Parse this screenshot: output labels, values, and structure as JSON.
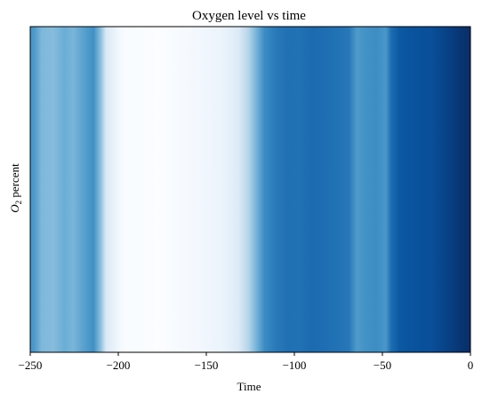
{
  "chart_data": {
    "type": "heatmap",
    "title": "Oxygen level vs time",
    "xlabel": "Time",
    "ylabel": "O₂ percent",
    "xlim": [
      -250,
      0
    ],
    "xticks": [
      -250,
      -200,
      -150,
      -100,
      -50,
      0
    ],
    "xtick_labels": [
      "−250",
      "−200",
      "−150",
      "−100",
      "−50",
      "0"
    ],
    "yticks": [],
    "colormap": "Blues",
    "grid": false,
    "legend": "none",
    "bands": [
      {
        "x0": -250,
        "x1": -246,
        "color": "#4a98c9"
      },
      {
        "x0": -246,
        "x1": -241,
        "color": "#7fb8da"
      },
      {
        "x0": -241,
        "x1": -233,
        "color": "#86bcdc"
      },
      {
        "x0": -233,
        "x1": -228,
        "color": "#6aaed6"
      },
      {
        "x0": -228,
        "x1": -223,
        "color": "#7ab5d9"
      },
      {
        "x0": -223,
        "x1": -217,
        "color": "#5aa2cf"
      },
      {
        "x0": -217,
        "x1": -211,
        "color": "#4090c5"
      },
      {
        "x0": -211,
        "x1": -209,
        "color": "#8cc0dd"
      },
      {
        "x0": -209,
        "x1": -205,
        "color": "#dbe9f6"
      },
      {
        "x0": -205,
        "x1": -190,
        "color": "#f7fbff"
      },
      {
        "x0": -190,
        "x1": -165,
        "color": "#fbfdff"
      },
      {
        "x0": -165,
        "x1": -145,
        "color": "#f3f8fe"
      },
      {
        "x0": -145,
        "x1": -135,
        "color": "#eaf3fb"
      },
      {
        "x0": -135,
        "x1": -128,
        "color": "#dceaf6"
      },
      {
        "x0": -128,
        "x1": -124,
        "color": "#b5d4e9"
      },
      {
        "x0": -124,
        "x1": -120,
        "color": "#7cb7da"
      },
      {
        "x0": -120,
        "x1": -114,
        "color": "#3c8cc3"
      },
      {
        "x0": -114,
        "x1": -108,
        "color": "#2a7aba"
      },
      {
        "x0": -108,
        "x1": -100,
        "color": "#2070b4"
      },
      {
        "x0": -100,
        "x1": -94,
        "color": "#2171b5"
      },
      {
        "x0": -94,
        "x1": -86,
        "color": "#1c6ab0"
      },
      {
        "x0": -86,
        "x1": -78,
        "color": "#1f6eb3"
      },
      {
        "x0": -78,
        "x1": -72,
        "color": "#2272b6"
      },
      {
        "x0": -72,
        "x1": -66,
        "color": "#2777b8"
      },
      {
        "x0": -66,
        "x1": -63,
        "color": "#4f9bcb"
      },
      {
        "x0": -63,
        "x1": -57,
        "color": "#4393c7"
      },
      {
        "x0": -57,
        "x1": -50,
        "color": "#3d8dc4"
      },
      {
        "x0": -50,
        "x1": -46,
        "color": "#4997c9"
      },
      {
        "x0": -46,
        "x1": -44,
        "color": "#1d6cb1"
      },
      {
        "x0": -44,
        "x1": -36,
        "color": "#0b58a1"
      },
      {
        "x0": -36,
        "x1": -30,
        "color": "#0a539e"
      },
      {
        "x0": -30,
        "x1": -24,
        "color": "#08509b"
      },
      {
        "x0": -24,
        "x1": -20,
        "color": "#0a4f9a"
      },
      {
        "x0": -20,
        "x1": -14,
        "color": "#08478d"
      },
      {
        "x0": -14,
        "x1": -8,
        "color": "#083e81"
      },
      {
        "x0": -8,
        "x1": -4,
        "color": "#083674"
      },
      {
        "x0": -4,
        "x1": 0,
        "color": "#08306b"
      }
    ]
  }
}
